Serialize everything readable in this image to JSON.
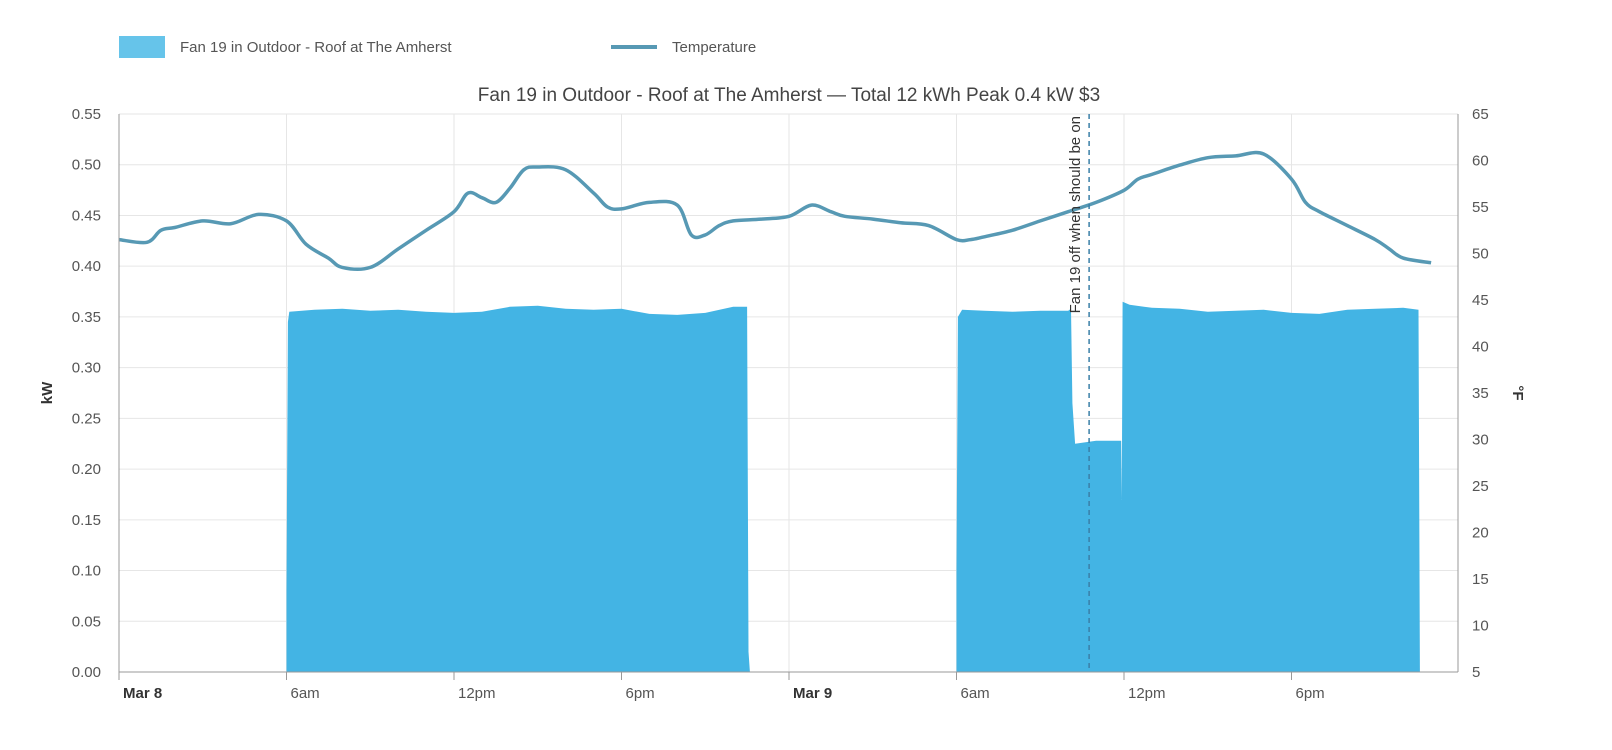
{
  "chart_data": {
    "type": "area",
    "title": "Fan 19 in Outdoor - Roof at The Amherst — Total 12 kWh Peak 0.4 kW $3",
    "ylabel_left": "kW",
    "ylabel_right": "°F",
    "ylim_left": [
      0,
      0.55
    ],
    "ylim_right": [
      5,
      65
    ],
    "xlim_hours": [
      0,
      47
    ],
    "grid": true,
    "legend_position": "top-left",
    "yticks_left": [
      "0.00",
      "0.05",
      "0.10",
      "0.15",
      "0.20",
      "0.25",
      "0.30",
      "0.35",
      "0.40",
      "0.45",
      "0.50",
      "0.55"
    ],
    "yticks_right": [
      "5",
      "10",
      "15",
      "20",
      "25",
      "30",
      "35",
      "40",
      "45",
      "50",
      "55",
      "60",
      "65"
    ],
    "xticks": [
      {
        "hour": 0,
        "label": "Mar 8",
        "bold": true
      },
      {
        "hour": 6,
        "label": "6am",
        "bold": false
      },
      {
        "hour": 12,
        "label": "12pm",
        "bold": false
      },
      {
        "hour": 18,
        "label": "6pm",
        "bold": false
      },
      {
        "hour": 24,
        "label": "Mar 9",
        "bold": true
      },
      {
        "hour": 30,
        "label": "6am",
        "bold": false
      },
      {
        "hour": 36,
        "label": "12pm",
        "bold": false
      },
      {
        "hour": 42,
        "label": "6pm",
        "bold": false
      }
    ],
    "series": [
      {
        "name": "Fan 19 in Outdoor - Roof at The Amherst",
        "type": "area",
        "axis": "left",
        "color": "#43b4e4",
        "legend_color": "#66c4ea",
        "points": [
          [
            0,
            0
          ],
          [
            6,
            0
          ],
          [
            6.0,
            0.08
          ],
          [
            6.05,
            0.345
          ],
          [
            6.1,
            0.355
          ],
          [
            7,
            0.357
          ],
          [
            8,
            0.358
          ],
          [
            9,
            0.356
          ],
          [
            10,
            0.357
          ],
          [
            11,
            0.355
          ],
          [
            12,
            0.354
          ],
          [
            13,
            0.355
          ],
          [
            14,
            0.36
          ],
          [
            15,
            0.361
          ],
          [
            16,
            0.358
          ],
          [
            17,
            0.357
          ],
          [
            18,
            0.358
          ],
          [
            19,
            0.353
          ],
          [
            20,
            0.352
          ],
          [
            21,
            0.354
          ],
          [
            22,
            0.36
          ],
          [
            22.5,
            0.36
          ],
          [
            22.55,
            0.02
          ],
          [
            22.6,
            0
          ],
          [
            30,
            0
          ],
          [
            30.0,
            0.1
          ],
          [
            30.05,
            0.35
          ],
          [
            30.2,
            0.357
          ],
          [
            31,
            0.356
          ],
          [
            32,
            0.355
          ],
          [
            33,
            0.356
          ],
          [
            34,
            0.356
          ],
          [
            34.1,
            0.358
          ],
          [
            34.15,
            0.265
          ],
          [
            34.25,
            0.225
          ],
          [
            35,
            0.228
          ],
          [
            35.9,
            0.228
          ],
          [
            35.92,
            0.17
          ],
          [
            35.95,
            0.365
          ],
          [
            36.2,
            0.362
          ],
          [
            37,
            0.359
          ],
          [
            38,
            0.358
          ],
          [
            39,
            0.355
          ],
          [
            40,
            0.356
          ],
          [
            41,
            0.357
          ],
          [
            42,
            0.354
          ],
          [
            43,
            0.353
          ],
          [
            44,
            0.357
          ],
          [
            45,
            0.358
          ],
          [
            46,
            0.359
          ],
          [
            46.55,
            0.357
          ],
          [
            46.6,
            0
          ]
        ]
      },
      {
        "name": "Temperature",
        "type": "line",
        "axis": "right",
        "color": "#5799b4",
        "points": [
          [
            0,
            51.5
          ],
          [
            1,
            51.2
          ],
          [
            1.5,
            52.5
          ],
          [
            2,
            52.8
          ],
          [
            3,
            53.5
          ],
          [
            4,
            53.2
          ],
          [
            5,
            54.2
          ],
          [
            6,
            53.5
          ],
          [
            6.7,
            51
          ],
          [
            7.5,
            49.5
          ],
          [
            8,
            48.5
          ],
          [
            9,
            48.5
          ],
          [
            10,
            50.5
          ],
          [
            11,
            52.5
          ],
          [
            12,
            54.5
          ],
          [
            12.5,
            56.5
          ],
          [
            13,
            56
          ],
          [
            13.5,
            55.5
          ],
          [
            14,
            57
          ],
          [
            14.5,
            59
          ],
          [
            15,
            59.3
          ],
          [
            16,
            59
          ],
          [
            17,
            56.5
          ],
          [
            17.5,
            55
          ],
          [
            18,
            54.8
          ],
          [
            19,
            55.5
          ],
          [
            20,
            55.2
          ],
          [
            20.5,
            52
          ],
          [
            21,
            52
          ],
          [
            21.5,
            53
          ],
          [
            22,
            53.5
          ],
          [
            23,
            53.7
          ],
          [
            24,
            54
          ],
          [
            24.8,
            55.2
          ],
          [
            25.5,
            54.5
          ],
          [
            26,
            54
          ],
          [
            27,
            53.7
          ],
          [
            28,
            53.3
          ],
          [
            29,
            53
          ],
          [
            30,
            51.5
          ],
          [
            30.5,
            51.5
          ],
          [
            31,
            51.8
          ],
          [
            32,
            52.5
          ],
          [
            33,
            53.5
          ],
          [
            34,
            54.5
          ],
          [
            35,
            55.5
          ],
          [
            36,
            56.8
          ],
          [
            36.5,
            58
          ],
          [
            37,
            58.5
          ],
          [
            38,
            59.5
          ],
          [
            39,
            60.3
          ],
          [
            40,
            60.5
          ],
          [
            41,
            60.7
          ],
          [
            42,
            58
          ],
          [
            42.5,
            55.5
          ],
          [
            43,
            54.5
          ],
          [
            44,
            53
          ],
          [
            45,
            51.5
          ],
          [
            45.5,
            50.5
          ],
          [
            46,
            49.5
          ],
          [
            47,
            49
          ]
        ]
      }
    ],
    "annotation": {
      "label": "Fan 19 off when should be on",
      "hour": 34.75
    }
  }
}
